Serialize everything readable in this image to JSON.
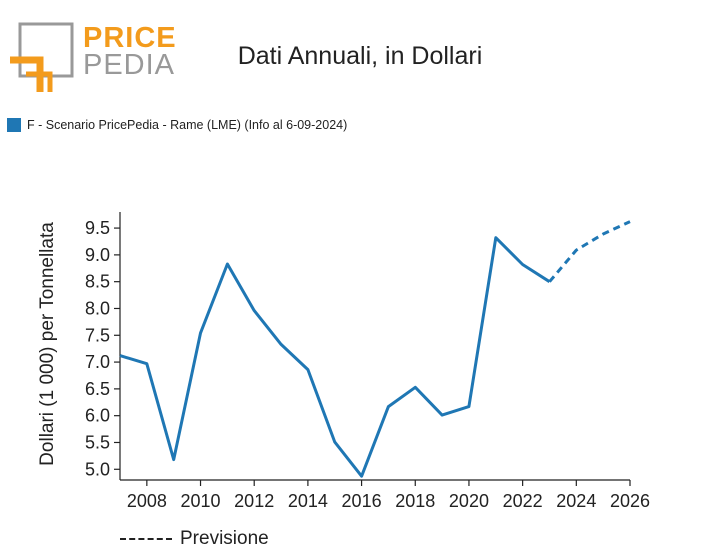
{
  "logo": {
    "line1": "PRICE",
    "line2": "PEDIA",
    "colors": {
      "orange": "#f39b1c",
      "gray": "#999999"
    }
  },
  "title": "Dati Annuali, in Dollari",
  "legend": {
    "label": "F - Scenario PricePedia - Rame (LME) (Info al 6-09-2024)",
    "color": "#1f77b4"
  },
  "bottom_legend": {
    "label": "Previsione"
  },
  "chart_data": {
    "type": "line",
    "title": "Dati Annuali, in Dollari",
    "xlabel": "",
    "ylabel": "Dollari (1 000) per Tonnellata",
    "xlim": [
      2007,
      2026
    ],
    "ylim": [
      4.8,
      9.8
    ],
    "x_ticks": [
      "2008",
      "2010",
      "2012",
      "2014",
      "2016",
      "2018",
      "2020",
      "2022",
      "2024",
      "2026"
    ],
    "y_ticks": [
      "5.0",
      "5.5",
      "6.0",
      "6.5",
      "7.0",
      "7.5",
      "8.0",
      "8.5",
      "9.0",
      "9.5"
    ],
    "grid": false,
    "series": [
      {
        "name": "F - Scenario PricePedia - Rame (LME) (Info al 6-09-2024)",
        "color": "#1f77b4",
        "style": "solid",
        "x": [
          2007,
          2008,
          2009,
          2010,
          2011,
          2012,
          2013,
          2014,
          2015,
          2016,
          2017,
          2018,
          2019,
          2020,
          2021,
          2022,
          2023
        ],
        "y": [
          7.12,
          6.97,
          5.18,
          7.54,
          8.83,
          7.96,
          7.33,
          6.86,
          5.51,
          4.87,
          6.17,
          6.53,
          6.01,
          6.17,
          9.32,
          8.82,
          8.5
        ]
      },
      {
        "name": "Previsione",
        "color": "#1f77b4",
        "style": "dashed",
        "x": [
          2023,
          2024,
          2025,
          2026
        ],
        "y": [
          8.5,
          9.09,
          9.39,
          9.62
        ]
      }
    ]
  }
}
